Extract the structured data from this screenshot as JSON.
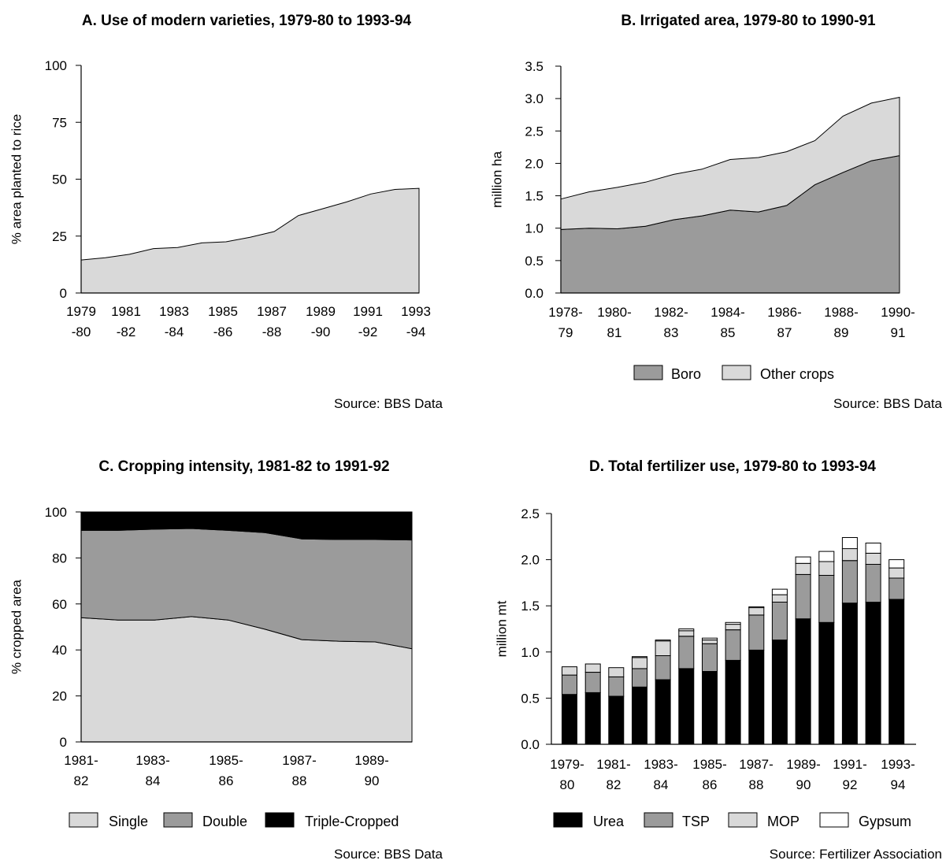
{
  "chart_data": [
    {
      "id": "A",
      "type": "area",
      "title": "A. Use of modern varieties, 1979-80 to 1993-94",
      "ylabel": "% area planted to rice",
      "ylim": [
        0,
        100
      ],
      "yticks": [
        0,
        25,
        50,
        75,
        100
      ],
      "xtick_labels": [
        [
          "1979",
          "-80"
        ],
        [
          "1981",
          "-82"
        ],
        [
          "1983",
          "-84"
        ],
        [
          "1985",
          "-86"
        ],
        [
          "1987",
          "-88"
        ],
        [
          "1989",
          "-90"
        ],
        [
          "1991",
          "-92"
        ],
        [
          "1993",
          "-94"
        ]
      ],
      "categories": [
        "1979-80",
        "1980-81",
        "1981-82",
        "1982-83",
        "1983-84",
        "1984-85",
        "1985-86",
        "1986-87",
        "1987-88",
        "1988-89",
        "1989-90",
        "1990-91",
        "1991-92",
        "1992-93",
        "1993-94"
      ],
      "series": [
        {
          "values": [
            14.5,
            15.5,
            17,
            19.5,
            20,
            22,
            22.5,
            24.5,
            27,
            34,
            37,
            40,
            43.5,
            45.5,
            46
          ]
        }
      ],
      "colors": [
        "#d9d9d9"
      ],
      "source": "Source: BBS Data"
    },
    {
      "id": "B",
      "type": "area",
      "title": "B. Irrigated area, 1979-80 to 1990-91",
      "ylabel": "million ha",
      "ylim": [
        0,
        3.5
      ],
      "yticks": [
        "0.0",
        "0.5",
        "1.0",
        "1.5",
        "2.0",
        "2.5",
        "3.0",
        "3.5"
      ],
      "xtick_labels": [
        [
          "1978-",
          "79"
        ],
        [
          "1980-",
          "81"
        ],
        [
          "1982-",
          "83"
        ],
        [
          "1984-",
          "85"
        ],
        [
          "1986-",
          "87"
        ],
        [
          "1988-",
          "89"
        ],
        [
          "1990-",
          "91"
        ]
      ],
      "categories": [
        "1978-79",
        "1979-80",
        "1980-81",
        "1981-82",
        "1982-83",
        "1983-84",
        "1984-85",
        "1985-86",
        "1986-87",
        "1987-88",
        "1988-89",
        "1989-90",
        "1990-91"
      ],
      "stacked": true,
      "series": [
        {
          "name": "Boro",
          "values": [
            0.98,
            1.0,
            0.99,
            1.03,
            1.13,
            1.19,
            1.28,
            1.25,
            1.35,
            1.67,
            1.86,
            2.04,
            2.12
          ]
        },
        {
          "name": "Other crops",
          "values": [
            0.47,
            0.56,
            0.64,
            0.68,
            0.7,
            0.72,
            0.78,
            0.84,
            0.83,
            0.68,
            0.87,
            0.89,
            0.9
          ]
        }
      ],
      "colors": [
        "#9b9b9b",
        "#d9d9d9"
      ],
      "source": "Source: BBS Data"
    },
    {
      "id": "C",
      "type": "area",
      "title": "C. Cropping intensity, 1981-82 to 1991-92",
      "ylabel": "% cropped area",
      "ylim": [
        0,
        100
      ],
      "yticks": [
        0,
        20,
        40,
        60,
        80,
        100
      ],
      "xtick_labels": [
        [
          "1981-",
          "82"
        ],
        [
          "1983-",
          "84"
        ],
        [
          "1985-",
          "86"
        ],
        [
          "1987-",
          "88"
        ],
        [
          "1989-",
          "90"
        ]
      ],
      "categories": [
        "1981-82",
        "1982-83",
        "1983-84",
        "1984-85",
        "1985-86",
        "1986-87",
        "1987-88",
        "1988-89",
        "1989-90",
        "1990-91",
        "1991-92"
      ],
      "stacked": true,
      "series": [
        {
          "name": "Single",
          "values": [
            54,
            53,
            53,
            54.5,
            53,
            49,
            44.5,
            43.8,
            43.5,
            40.5,
            null
          ]
        },
        {
          "name": "Double",
          "values": [
            38,
            39,
            39.5,
            38.3,
            39,
            42,
            43.8,
            44.2,
            44.5,
            47.3,
            null
          ]
        },
        {
          "name": "Triple-Cropped",
          "values": [
            8,
            8,
            7.5,
            7.2,
            8,
            9,
            11.7,
            12,
            12,
            12.2,
            null
          ]
        }
      ],
      "colors": [
        "#d9d9d9",
        "#9b9b9b",
        "#000000"
      ],
      "source": "Source: BBS Data"
    },
    {
      "id": "D",
      "type": "bar",
      "stacked": true,
      "title": "D. Total fertilizer use, 1979-80 to 1993-94",
      "ylabel": "million mt",
      "ylim": [
        0,
        2.5
      ],
      "yticks": [
        "0.0",
        "0.5",
        "1.0",
        "1.5",
        "2.0",
        "2.5"
      ],
      "xtick_labels": [
        [
          "1979-",
          "80"
        ],
        [
          "1981-",
          "82"
        ],
        [
          "1983-",
          "84"
        ],
        [
          "1985-",
          "86"
        ],
        [
          "1987-",
          "88"
        ],
        [
          "1989-",
          "90"
        ],
        [
          "1991-",
          "92"
        ],
        [
          "1993-",
          "94"
        ]
      ],
      "categories": [
        "1979-80",
        "1980-81",
        "1981-82",
        "1982-83",
        "1983-84",
        "1984-85",
        "1985-86",
        "1986-87",
        "1987-88",
        "1988-89",
        "1989-90",
        "1990-91",
        "1991-92",
        "1992-93",
        "1993-94"
      ],
      "series": [
        {
          "name": "Urea",
          "values": [
            0.54,
            0.56,
            0.52,
            0.62,
            0.7,
            0.82,
            0.79,
            0.91,
            1.02,
            1.13,
            1.36,
            1.32,
            1.53,
            1.54,
            1.57
          ]
        },
        {
          "name": "TSP",
          "values": [
            0.21,
            0.22,
            0.21,
            0.2,
            0.26,
            0.35,
            0.3,
            0.33,
            0.38,
            0.41,
            0.48,
            0.51,
            0.46,
            0.41,
            0.23
          ]
        },
        {
          "name": "MOP",
          "values": [
            0.09,
            0.09,
            0.1,
            0.12,
            0.16,
            0.06,
            0.04,
            0.06,
            0.08,
            0.08,
            0.12,
            0.15,
            0.13,
            0.12,
            0.11
          ]
        },
        {
          "name": "Gypsum",
          "values": [
            0,
            0,
            0,
            0.01,
            0.01,
            0.02,
            0.02,
            0.02,
            0.01,
            0.06,
            0.07,
            0.11,
            0.12,
            0.11,
            0.09
          ]
        }
      ],
      "colors": [
        "#000000",
        "#9b9b9b",
        "#d9d9d9",
        "#ffffff"
      ],
      "source": "Source: Fertilizer Association"
    }
  ]
}
